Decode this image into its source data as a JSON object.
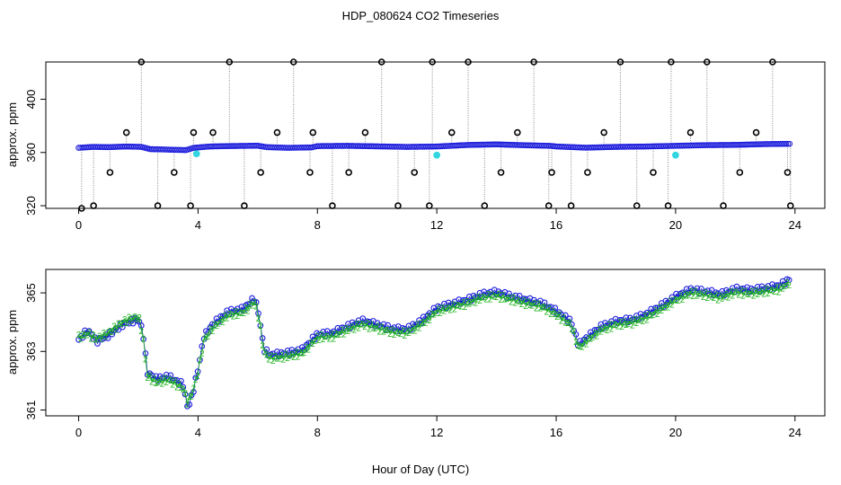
{
  "figure": {
    "title": "HDP_080624  CO2 Timeseries",
    "xlabel": "Hour of Day (UTC)"
  },
  "chart_data": [
    {
      "type": "scatter",
      "panel": "top",
      "ylabel": "approx. ppm",
      "xlim": [
        -1.1,
        25
      ],
      "ylim": [
        318,
        428
      ],
      "x_ticks": [
        0,
        4,
        8,
        12,
        16,
        20,
        24
      ],
      "y_ticks": [
        320,
        360,
        400
      ],
      "grid": false,
      "baseline": [
        [
          0,
          363.5
        ],
        [
          0.5,
          364.2
        ],
        [
          1,
          364.0
        ],
        [
          1.6,
          364.5
        ],
        [
          2.1,
          364.2
        ],
        [
          2.4,
          362.5
        ],
        [
          2.8,
          362.3
        ],
        [
          3.2,
          362.0
        ],
        [
          3.6,
          361.8
        ],
        [
          3.85,
          363.5
        ],
        [
          4.4,
          364.5
        ],
        [
          5,
          364.8
        ],
        [
          6,
          365.1
        ],
        [
          6.3,
          364.0
        ],
        [
          7,
          363.5
        ],
        [
          7.8,
          363.8
        ],
        [
          8,
          364.8
        ],
        [
          9,
          365.0
        ],
        [
          10,
          364.6
        ],
        [
          11,
          364.2
        ],
        [
          12,
          364.5
        ],
        [
          13,
          365.6
        ],
        [
          14,
          366.1
        ],
        [
          15,
          365.4
        ],
        [
          15.8,
          365.0
        ],
        [
          16,
          364.5
        ],
        [
          17,
          363.6
        ],
        [
          18,
          364.2
        ],
        [
          19,
          364.5
        ],
        [
          20,
          365.0
        ],
        [
          21,
          365.5
        ],
        [
          22,
          365.7
        ],
        [
          23,
          366.3
        ],
        [
          23.8,
          366.5
        ]
      ],
      "spike_hours": [
        0.1,
        0.5,
        1.05,
        1.6,
        2.1,
        2.65,
        3.2,
        3.75,
        3.85,
        4.5,
        5.05,
        5.55,
        6.1,
        6.65,
        7.2,
        7.75,
        7.85,
        8.5,
        9.05,
        9.6,
        10.15,
        10.7,
        11.25,
        11.75,
        11.85,
        12.5,
        13.05,
        13.6,
        14.15,
        14.7,
        15.25,
        15.75,
        15.85,
        16.5,
        17.05,
        17.6,
        18.15,
        18.7,
        19.25,
        19.75,
        19.85,
        20.5,
        21.05,
        21.6,
        22.15,
        22.7,
        23.25,
        23.75,
        23.85
      ],
      "spike_values": [
        318,
        320,
        345,
        375,
        428,
        320,
        345,
        320,
        375,
        375,
        428,
        320,
        345,
        375,
        428,
        345,
        375,
        320,
        345,
        375,
        428,
        320,
        345,
        320,
        428,
        375,
        428,
        320,
        345,
        375,
        428,
        320,
        345,
        320,
        345,
        375,
        428,
        320,
        345,
        320,
        428,
        375,
        428,
        320,
        345,
        375,
        428,
        345,
        320
      ],
      "outliers": [
        [
          3.95,
          359
        ],
        [
          12.0,
          358
        ],
        [
          20.0,
          358
        ]
      ],
      "colors": {
        "raw": "#000000",
        "filtered": "#1a1adc",
        "flagged": "#33d6e0",
        "connector": "#888888"
      }
    },
    {
      "type": "line",
      "panel": "bottom",
      "ylabel": "approx. ppm",
      "xlim": [
        -1.1,
        25
      ],
      "ylim": [
        360.8,
        365.8
      ],
      "x_ticks": [
        0,
        4,
        8,
        12,
        16,
        20,
        24
      ],
      "y_ticks": [
        361,
        363,
        365
      ],
      "grid": false,
      "series": [
        {
          "marker": "o",
          "color": "#1a1adc",
          "points": [
            [
              0,
              363.4
            ],
            [
              0.3,
              363.7
            ],
            [
              0.6,
              363.3
            ],
            [
              1,
              363.5
            ],
            [
              1.5,
              363.9
            ],
            [
              2,
              364.1
            ],
            [
              2.15,
              363.7
            ],
            [
              2.3,
              362.3
            ],
            [
              2.6,
              362.1
            ],
            [
              3,
              362.2
            ],
            [
              3.5,
              361.9
            ],
            [
              3.65,
              361.1
            ],
            [
              3.8,
              361.5
            ],
            [
              4,
              362.4
            ],
            [
              4.2,
              363.5
            ],
            [
              4.5,
              363.9
            ],
            [
              5,
              364.3
            ],
            [
              5.5,
              364.4
            ],
            [
              5.9,
              364.8
            ],
            [
              6.05,
              364.2
            ],
            [
              6.2,
              363.1
            ],
            [
              6.4,
              362.9
            ],
            [
              7,
              363.0
            ],
            [
              7.5,
              363.1
            ],
            [
              8,
              363.6
            ],
            [
              8.5,
              363.6
            ],
            [
              9,
              363.8
            ],
            [
              9.5,
              364.0
            ],
            [
              10,
              363.9
            ],
            [
              10.5,
              363.8
            ],
            [
              11,
              363.8
            ],
            [
              11.5,
              364.1
            ],
            [
              12,
              364.5
            ],
            [
              12.5,
              364.6
            ],
            [
              13,
              364.7
            ],
            [
              13.5,
              364.9
            ],
            [
              14,
              365.0
            ],
            [
              14.5,
              364.9
            ],
            [
              15,
              364.8
            ],
            [
              15.5,
              364.7
            ],
            [
              16,
              364.4
            ],
            [
              16.5,
              364.0
            ],
            [
              16.75,
              363.2
            ],
            [
              17,
              363.4
            ],
            [
              17.5,
              363.8
            ],
            [
              18,
              364.0
            ],
            [
              18.5,
              364.1
            ],
            [
              19,
              364.3
            ],
            [
              19.5,
              364.6
            ],
            [
              20,
              364.9
            ],
            [
              20.5,
              365.1
            ],
            [
              21,
              365.0
            ],
            [
              21.5,
              364.9
            ],
            [
              22,
              365.1
            ],
            [
              22.5,
              365.1
            ],
            [
              23,
              365.2
            ],
            [
              23.5,
              365.3
            ],
            [
              23.8,
              365.5
            ]
          ]
        },
        {
          "marker": "2",
          "color": "#1bb21b",
          "points": [
            [
              0,
              363.5
            ],
            [
              0.3,
              363.6
            ],
            [
              0.6,
              363.4
            ],
            [
              1,
              363.6
            ],
            [
              1.5,
              364.0
            ],
            [
              2,
              364.2
            ],
            [
              2.15,
              363.6
            ],
            [
              2.3,
              362.2
            ],
            [
              2.6,
              362.0
            ],
            [
              3,
              362.1
            ],
            [
              3.5,
              361.8
            ],
            [
              3.65,
              361.3
            ],
            [
              3.8,
              361.6
            ],
            [
              4,
              362.3
            ],
            [
              4.2,
              363.4
            ],
            [
              4.5,
              363.8
            ],
            [
              5,
              364.2
            ],
            [
              5.5,
              364.3
            ],
            [
              5.9,
              364.7
            ],
            [
              6.05,
              364.1
            ],
            [
              6.2,
              363.0
            ],
            [
              6.4,
              362.8
            ],
            [
              7,
              362.9
            ],
            [
              7.5,
              363.0
            ],
            [
              8,
              363.5
            ],
            [
              8.5,
              363.5
            ],
            [
              9,
              363.7
            ],
            [
              9.5,
              363.9
            ],
            [
              10,
              363.8
            ],
            [
              10.5,
              363.7
            ],
            [
              11,
              363.7
            ],
            [
              11.5,
              364.0
            ],
            [
              12,
              364.4
            ],
            [
              12.5,
              364.5
            ],
            [
              13,
              364.6
            ],
            [
              13.5,
              364.8
            ],
            [
              14,
              364.9
            ],
            [
              14.5,
              364.8
            ],
            [
              15,
              364.7
            ],
            [
              15.5,
              364.6
            ],
            [
              16,
              364.3
            ],
            [
              16.5,
              363.9
            ],
            [
              16.75,
              363.1
            ],
            [
              17,
              363.3
            ],
            [
              17.5,
              363.7
            ],
            [
              18,
              363.9
            ],
            [
              18.5,
              364.0
            ],
            [
              19,
              364.2
            ],
            [
              19.5,
              364.5
            ],
            [
              20,
              364.8
            ],
            [
              20.5,
              365.0
            ],
            [
              21,
              364.9
            ],
            [
              21.5,
              364.8
            ],
            [
              22,
              365.0
            ],
            [
              22.5,
              365.0
            ],
            [
              23,
              365.1
            ],
            [
              23.5,
              365.2
            ],
            [
              23.8,
              365.4
            ]
          ]
        }
      ]
    }
  ]
}
